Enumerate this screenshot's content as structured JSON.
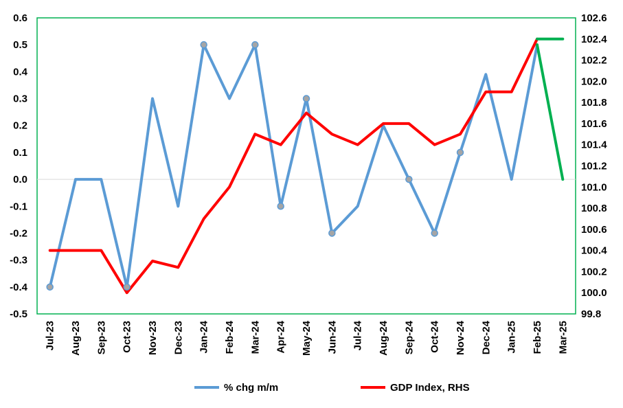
{
  "chart_data": {
    "type": "line",
    "categories": [
      "Jul-23",
      "Aug-23",
      "Sep-23",
      "Oct-23",
      "Nov-23",
      "Dec-23",
      "Jan-24",
      "Feb-24",
      "Mar-24",
      "Apr-24",
      "May-24",
      "Jun-24",
      "Jul-24",
      "Aug-24",
      "Sep-24",
      "Oct-24",
      "Nov-24",
      "Dec-24",
      "Jan-25",
      "Feb-25",
      "Mar-25"
    ],
    "left_axis": {
      "min": -0.5,
      "max": 0.6,
      "step": 0.1,
      "tick_labels": [
        "-0.5",
        "-0.4",
        "-0.3",
        "-0.2",
        "-0.1",
        "0.0",
        "0.1",
        "0.2",
        "0.3",
        "0.4",
        "0.5",
        "0.6"
      ]
    },
    "right_axis": {
      "min": 99.8,
      "max": 102.6,
      "step": 0.2,
      "tick_labels": [
        "99.8",
        "100.0",
        "100.2",
        "100.4",
        "100.6",
        "100.8",
        "101.0",
        "101.2",
        "101.4",
        "101.6",
        "101.8",
        "102.0",
        "102.2",
        "102.4",
        "102.6"
      ]
    },
    "series": [
      {
        "name": "% chg m/m",
        "axis": "left",
        "color": "#5b9bd5",
        "values": [
          -0.4,
          0.0,
          0.0,
          -0.4,
          0.3,
          -0.1,
          0.5,
          0.3,
          0.5,
          -0.1,
          0.3,
          -0.2,
          -0.1,
          0.2,
          0.0,
          -0.2,
          0.1,
          0.39,
          0.0,
          0.5,
          null
        ],
        "markers": [
          true,
          false,
          false,
          true,
          false,
          false,
          true,
          false,
          true,
          true,
          true,
          true,
          false,
          false,
          true,
          true,
          true,
          false,
          false,
          false,
          false
        ]
      },
      {
        "name": "GDP Index, RHS",
        "axis": "right",
        "color": "#ff0000",
        "values": [
          100.4,
          100.4,
          100.4,
          100.0,
          100.3,
          100.24,
          100.7,
          101.0,
          101.5,
          101.4,
          101.7,
          101.5,
          101.4,
          101.6,
          101.6,
          101.4,
          101.5,
          101.9,
          101.9,
          102.4,
          null
        ]
      },
      {
        "name": "",
        "axis": "left",
        "color": "#00b050",
        "values": [
          null,
          null,
          null,
          null,
          null,
          null,
          null,
          null,
          null,
          null,
          null,
          null,
          null,
          null,
          null,
          null,
          null,
          null,
          null,
          0.5,
          0.0
        ]
      },
      {
        "name": "",
        "axis": "right",
        "color": "#00b050",
        "values": [
          null,
          null,
          null,
          null,
          null,
          null,
          null,
          null,
          null,
          null,
          null,
          null,
          null,
          null,
          null,
          null,
          null,
          null,
          null,
          102.4,
          102.4
        ]
      }
    ],
    "legend": {
      "placement": "bottom",
      "entries": [
        {
          "label": "% chg m/m",
          "color": "#5b9bd5"
        },
        {
          "label": "GDP Index, RHS",
          "color": "#ff0000"
        }
      ]
    },
    "plot_border_color": "#00b050",
    "zero_line_color": "#d9d9d9"
  }
}
